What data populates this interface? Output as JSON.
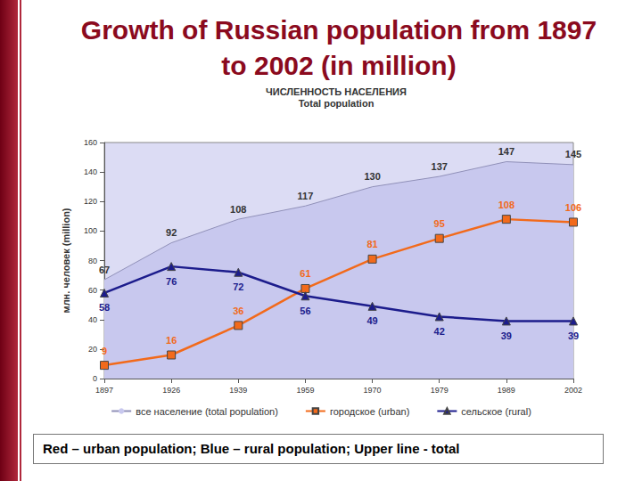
{
  "chart_data": {
    "type": "line",
    "title": "Growth of Russian population from 1897 to 2002 (in million)",
    "chart_title": "ЧИСЛЕННОСТЬ НАСЕЛЕНИЯ",
    "chart_subtitle": "Total population",
    "y_label": "млн. человек (million)",
    "caption": "Red – urban population; Blue – rural population; Upper line - total",
    "categories": [
      "1897",
      "1926",
      "1939",
      "1959",
      "1970",
      "1979",
      "1989",
      "2002"
    ],
    "series": [
      {
        "name": "все население (total population)",
        "type": "area",
        "color": "#c8c8ee",
        "marker": "none",
        "values": [
          67,
          92,
          108,
          117,
          130,
          137,
          147,
          145
        ]
      },
      {
        "name": "городское (urban)",
        "type": "line",
        "color": "#f26a1b",
        "marker": "square",
        "values": [
          9,
          16,
          36,
          61,
          81,
          95,
          108,
          106
        ]
      },
      {
        "name": "сельское (rural)",
        "type": "line",
        "color": "#1c1c8c",
        "marker": "triangle",
        "values": [
          58,
          76,
          72,
          56,
          49,
          42,
          39,
          39
        ]
      }
    ],
    "ylim": [
      0,
      160
    ],
    "yticks": [
      0,
      20,
      40,
      60,
      80,
      100,
      120,
      140,
      160
    ],
    "grid": false,
    "legend": "bottom",
    "data_labels": true
  }
}
